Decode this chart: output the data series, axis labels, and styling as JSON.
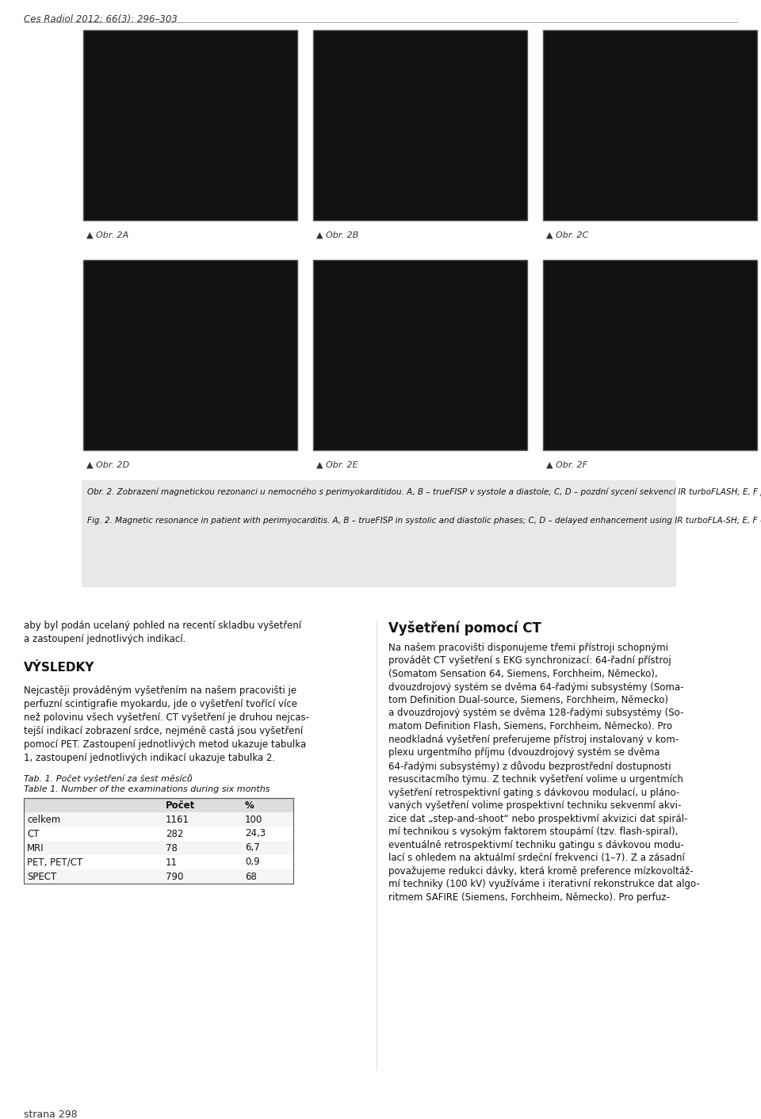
{
  "background_color": "#ffffff",
  "page_header": "Ces Radiol 2012; 66(3): 296–303",
  "image_row1_labels": [
    "▲ Obr. 2A",
    "▲ Obr. 2B",
    "▲ Obr. 2C"
  ],
  "image_row2_labels": [
    "▲ Obr. 2D",
    "▲ Obr. 2E",
    "▲ Obr. 2F"
  ],
  "caption_cz_bold": "Obr. 2. ",
  "caption_cz_bold2": "Zobrazení magnetickou rezonanci u nemocného s perimyokarditidou.",
  "caption_cz_normal": " A, B – trueFISP v systole a diastole; C, D – pozdní sycení sekvencí IR turboFLASH; E, F pozdní sycení sekvencí PSIR",
  "caption_en_prefix": "Fig. 2. ",
  "caption_en_bold": "Magnetic resonance in patient with perimyocarditis.",
  "caption_en_normal": " A, B – trueFISP in systolic and diastolic phases; C, D – delayed enhancement using IR turboFLA-SH; E, F – delayed enhancement using PSIE",
  "table_title_cz": "Tab. 1. Počet vyšetření za šest měsíců",
  "table_title_en": "Table 1. Number of the examinations during six months",
  "table_headers": [
    "",
    "Počet",
    "%"
  ],
  "table_rows": [
    [
      "celkem",
      "1161",
      "100"
    ],
    [
      "CT",
      "282",
      "24,3"
    ],
    [
      "MRI",
      "78",
      "6,7"
    ],
    [
      "PET, PET/CT",
      "11",
      "0,9"
    ],
    [
      "SPECT",
      "790",
      "68"
    ]
  ],
  "body_right_header": "Vyšetření pomocí CT",
  "page_footer": "strana 298"
}
